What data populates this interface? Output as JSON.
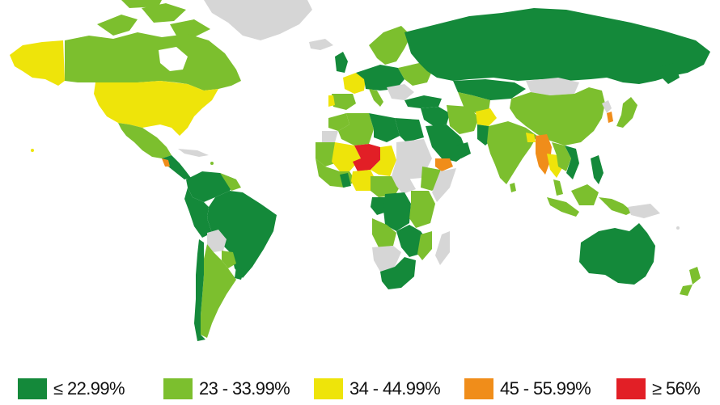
{
  "colors": {
    "very_low": "#14893a",
    "low": "#7cbf2e",
    "moderate": "#eee40a",
    "high": "#f08d1a",
    "very_high": "#e21f26",
    "no_data": "#d6d6d6",
    "background": "#ffffff"
  },
  "legend": {
    "items": [
      {
        "label": "≤  22.99%",
        "color_key": "very_low"
      },
      {
        "label": "23 - 33.99%",
        "color_key": "low"
      },
      {
        "label": "34 - 44.99%",
        "color_key": "moderate"
      },
      {
        "label": "45 - 55.99%",
        "color_key": "high"
      },
      {
        "label": "≥ 56%",
        "color_key": "very_high"
      }
    ]
  }
}
